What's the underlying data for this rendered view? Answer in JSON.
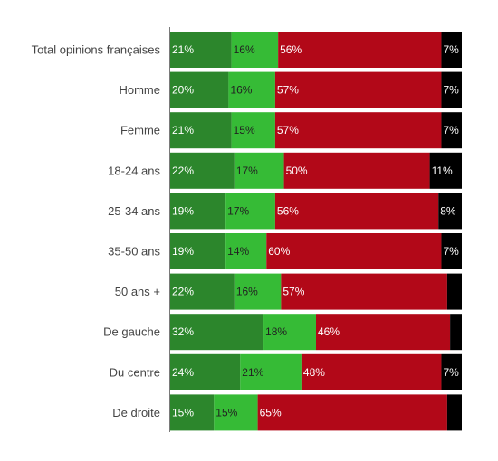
{
  "chart_data": {
    "type": "bar",
    "orientation": "horizontal",
    "stacked": true,
    "normalized": true,
    "categories": [
      "Total opinions françaises",
      "Homme",
      "Femme",
      "18-24 ans",
      "25-34 ans",
      "35-50 ans",
      "50 ans +",
      "De gauche",
      "Du centre",
      "De droite"
    ],
    "series": [
      {
        "color": "#2c862c",
        "label_color": "#ffffff",
        "values": [
          21,
          20,
          21,
          22,
          19,
          19,
          22,
          32,
          24,
          15
        ],
        "labels": [
          "21%",
          "20%",
          "21%",
          "22%",
          "19%",
          "19%",
          "22%",
          "32%",
          "24%",
          "15%"
        ]
      },
      {
        "color": "#36bb36",
        "label_color": "#222222",
        "values": [
          16,
          16,
          15,
          17,
          17,
          14,
          16,
          18,
          21,
          15
        ],
        "labels": [
          "16%",
          "16%",
          "15%",
          "17%",
          "17%",
          "14%",
          "16%",
          "18%",
          "21%",
          "15%"
        ]
      },
      {
        "color": "#b20818",
        "label_color": "#ffffff",
        "values": [
          56,
          57,
          57,
          50,
          56,
          60,
          57,
          46,
          48,
          65
        ],
        "labels": [
          "56%",
          "57%",
          "57%",
          "50%",
          "56%",
          "60%",
          "57%",
          "46%",
          "48%",
          "65%"
        ]
      },
      {
        "color": "#000000",
        "label_color": "#ffffff",
        "values": [
          7,
          7,
          7,
          11,
          8,
          7,
          5,
          4,
          7,
          5
        ],
        "labels": [
          "7%",
          "7%",
          "7%",
          "11%",
          "8%",
          "7%",
          "",
          "",
          "7%",
          ""
        ]
      }
    ],
    "xlim": [
      0,
      100
    ],
    "grid": false,
    "legend": "none",
    "title": "",
    "xlabel": "",
    "ylabel": ""
  }
}
